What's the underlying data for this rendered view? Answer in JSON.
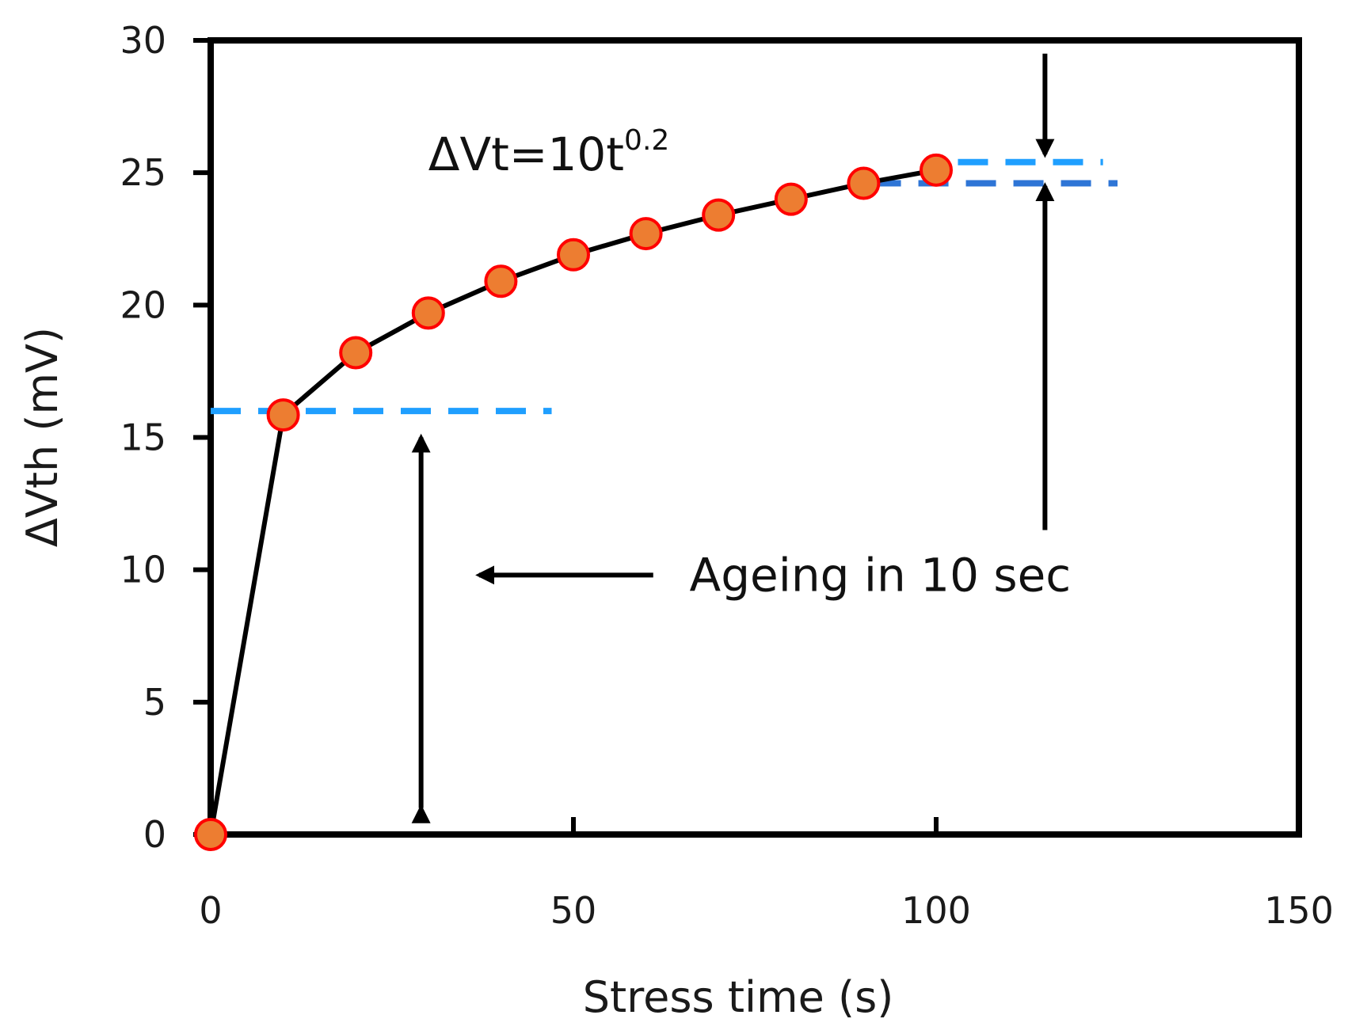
{
  "chart_data": {
    "type": "scatter",
    "title": "",
    "xlabel": "Stress time (s)",
    "ylabel": "ΔVth (mV)",
    "xlim": [
      0,
      150
    ],
    "ylim": [
      0,
      30
    ],
    "xticks": [
      0,
      50,
      100,
      150
    ],
    "yticks": [
      0,
      5,
      10,
      15,
      20,
      25,
      30
    ],
    "grid": false,
    "series": [
      {
        "name": "ΔVth",
        "x": [
          0,
          10,
          20,
          30,
          40,
          50,
          60,
          70,
          80,
          90,
          100
        ],
        "y": [
          0,
          15.85,
          18.2,
          19.7,
          20.9,
          21.9,
          22.7,
          23.4,
          24.0,
          24.6,
          25.1
        ],
        "marker_fill": "#ed7d31",
        "marker_edge": "#ff0000",
        "line_color": "#000000"
      }
    ],
    "annotations": {
      "equation_main": "ΔVt=10t",
      "equation_exp": "0.2",
      "ageing_label": "Ageing in 10 sec",
      "ref_line_low": {
        "x_start": 0,
        "x_end": 47,
        "y": 16.0,
        "color": "#1f9fff"
      },
      "ref_line_high_a": {
        "x_start": 103,
        "x_end": 123,
        "y": 25.4,
        "color": "#1f9fff"
      },
      "ref_line_high_b": {
        "x_start": 91,
        "x_end": 125,
        "y": 24.6,
        "color": "#2e75d6"
      },
      "arrow_double_x": 29,
      "arrow_double_y": [
        1,
        15
      ],
      "arrow_left": {
        "x_from": 61,
        "x_to": 37,
        "y": 9.8
      },
      "arrow_top": {
        "x": 115,
        "y_from": 29.5,
        "y_to": 25.7
      },
      "arrow_bottom": {
        "x": 115,
        "y_from": 11.5,
        "y_to": 24.5
      },
      "equation_pos": {
        "x": 30,
        "y": 25.7
      },
      "ageing_pos": {
        "x": 66,
        "y": 9.8
      }
    }
  }
}
